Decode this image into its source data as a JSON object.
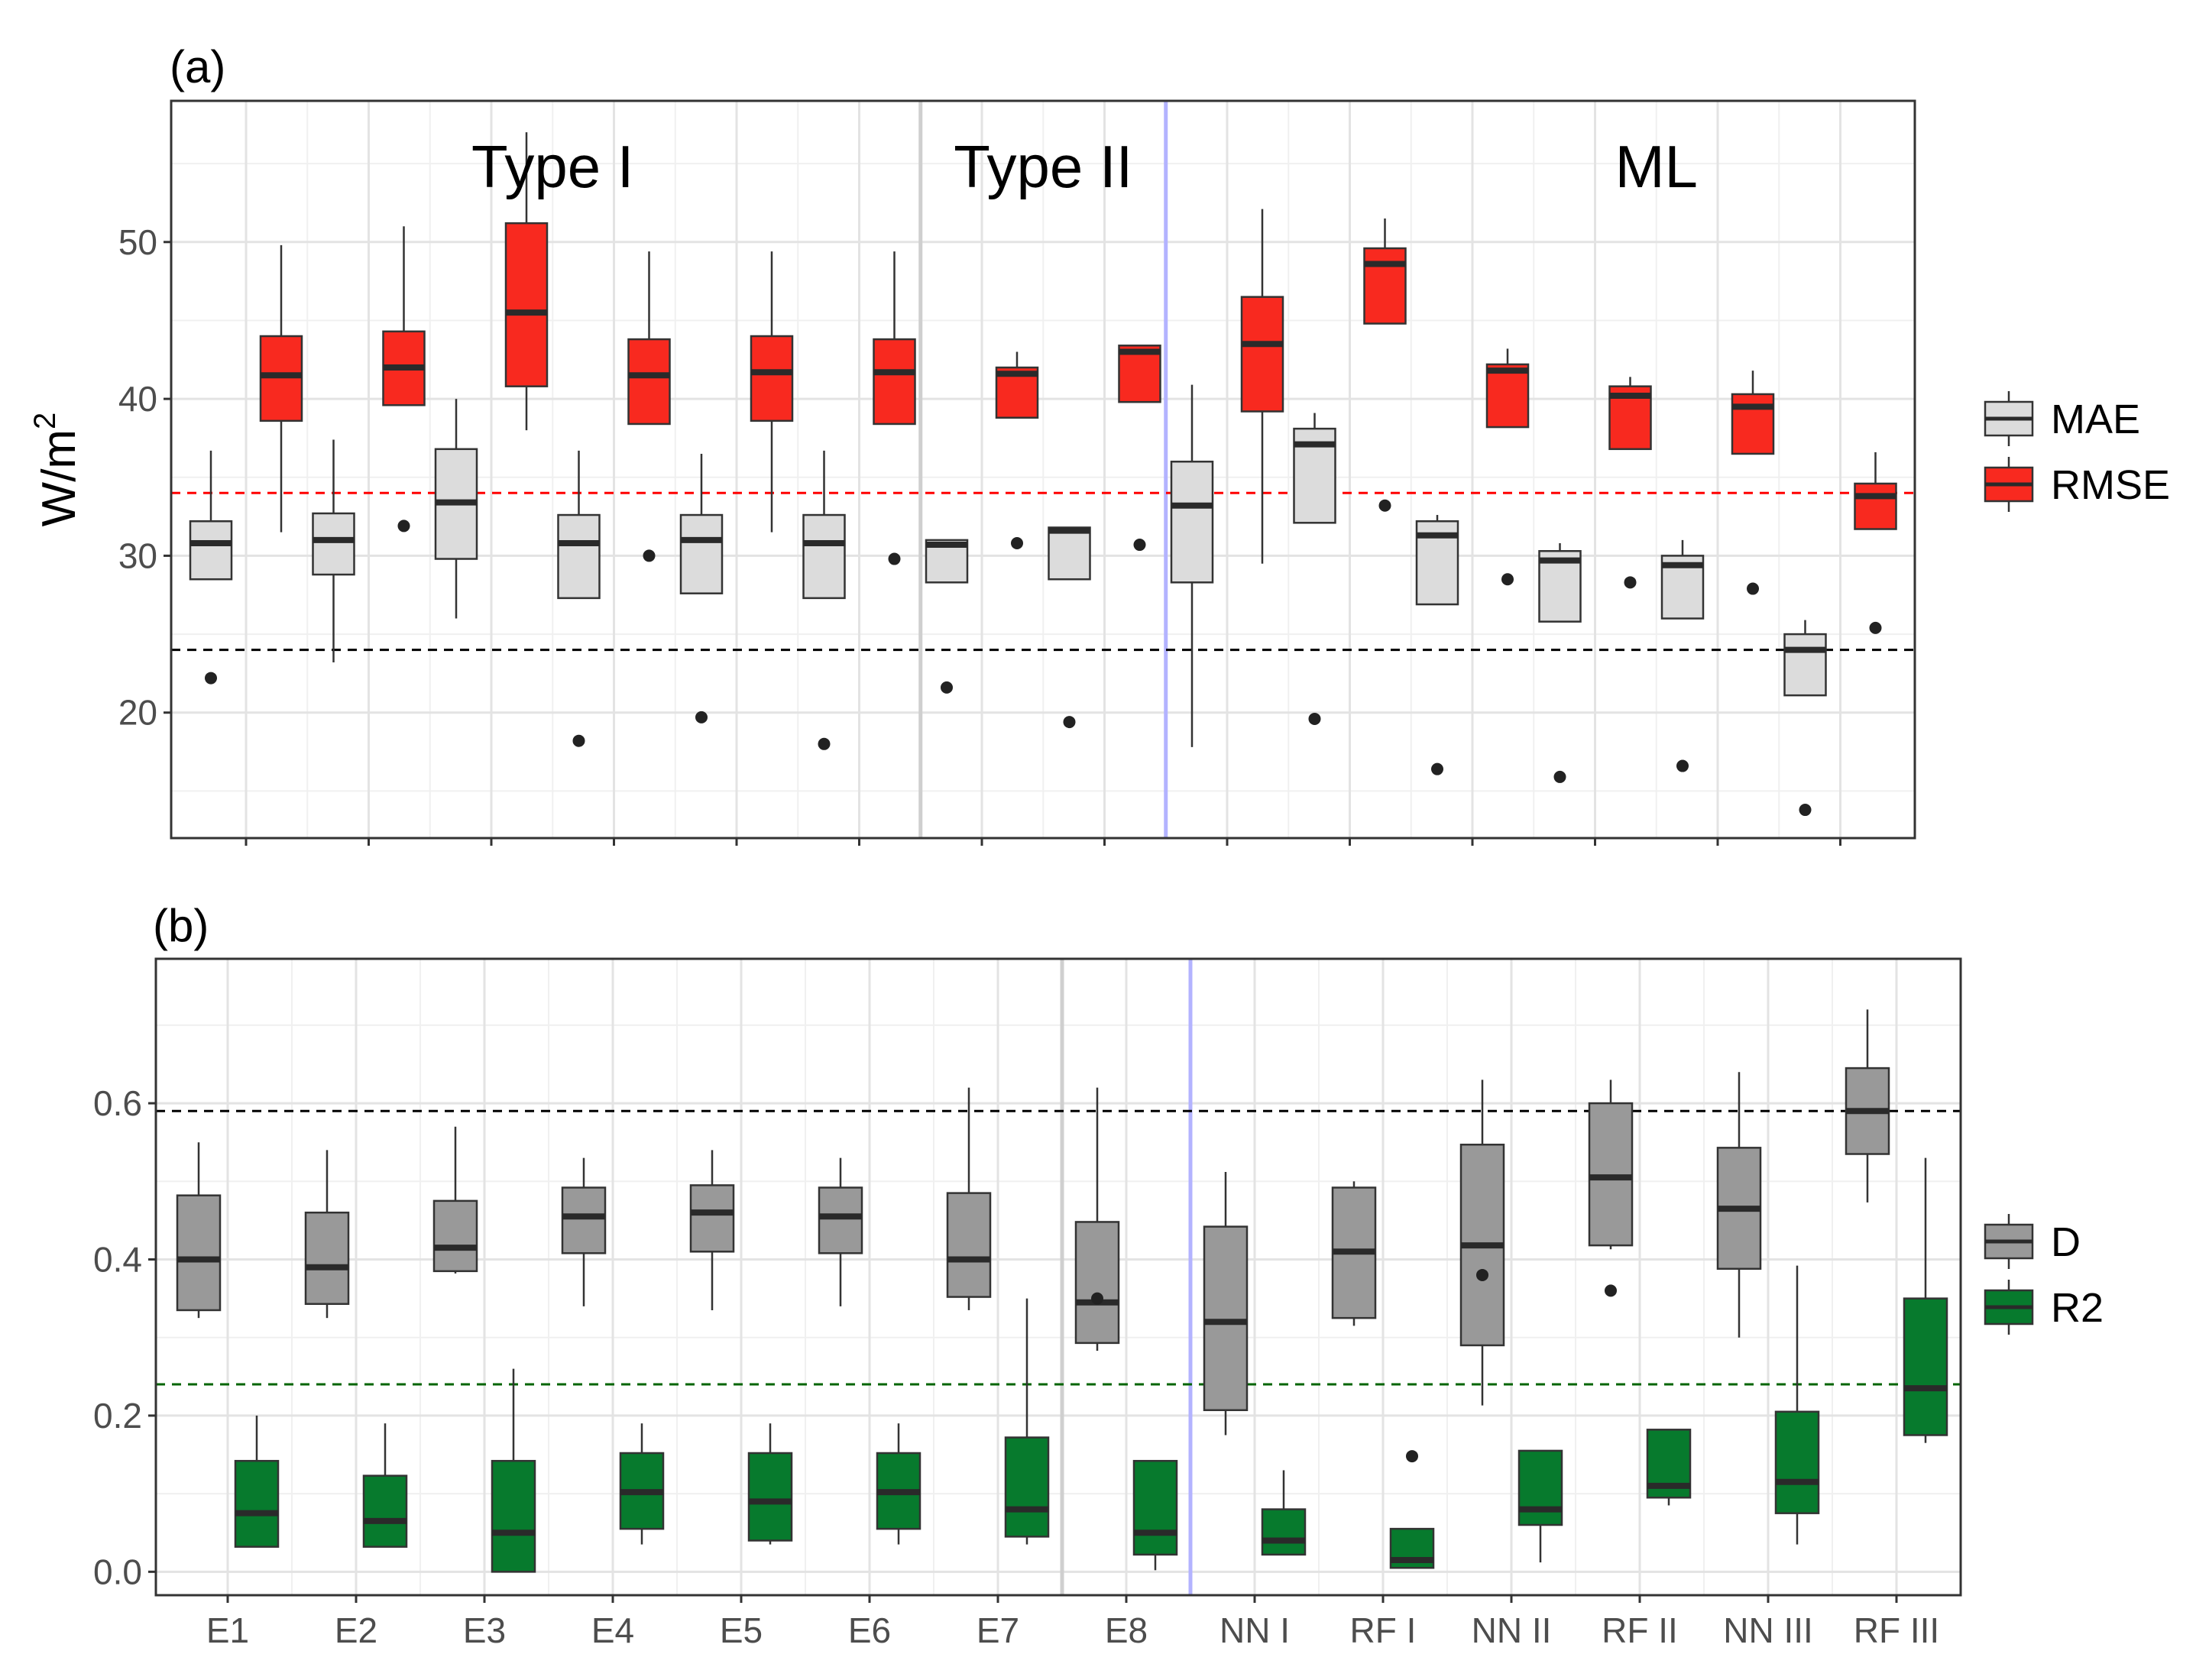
{
  "chart_data": [
    {
      "panel": "(a)",
      "type": "boxplot",
      "ylabel": "W/m",
      "ylabel_sup": "2",
      "ylim": [
        12,
        59
      ],
      "yticks": [
        20,
        30,
        40,
        50
      ],
      "group_labels": [
        {
          "label": "Type I",
          "center": 2.5
        },
        {
          "label": "Type II",
          "center": 6.5
        },
        {
          "label": "ML",
          "center": 11.5
        }
      ],
      "separators": [
        {
          "after": 5.5,
          "color": "#cfcfcf"
        },
        {
          "after": 7.5,
          "color": "#b3b3ff"
        }
      ],
      "reference_lines": [
        {
          "value": 34,
          "color": "#ff0000"
        },
        {
          "value": 24,
          "color": "#000000"
        }
      ],
      "categories": [
        "E1",
        "E2",
        "E3",
        "E4",
        "E5",
        "E6",
        "E7",
        "E8",
        "NN I",
        "RF I",
        "NN II",
        "RF II",
        "NN III",
        "RF III"
      ],
      "series": [
        {
          "name": "MAE",
          "color": "#dcdcdc",
          "boxes": [
            {
              "lw": 28.5,
              "q1": 28.5,
              "med": 30.8,
              "q3": 32.2,
              "uw": 36.7,
              "out": [
                22.2
              ]
            },
            {
              "lw": 23.2,
              "q1": 28.8,
              "med": 31.0,
              "q3": 32.7,
              "uw": 37.4,
              "out": []
            },
            {
              "lw": 26.0,
              "q1": 29.8,
              "med": 33.4,
              "q3": 36.8,
              "uw": 40.0,
              "out": []
            },
            {
              "lw": 27.3,
              "q1": 27.3,
              "med": 30.8,
              "q3": 32.6,
              "uw": 36.7,
              "out": [
                18.2
              ]
            },
            {
              "lw": 27.6,
              "q1": 27.6,
              "med": 31.0,
              "q3": 32.6,
              "uw": 36.5,
              "out": [
                19.7
              ]
            },
            {
              "lw": 27.3,
              "q1": 27.3,
              "med": 30.8,
              "q3": 32.6,
              "uw": 36.7,
              "out": [
                18.0
              ]
            },
            {
              "lw": 28.3,
              "q1": 28.3,
              "med": 30.7,
              "q3": 31.0,
              "uw": 31.0,
              "out": [
                21.6
              ]
            },
            {
              "lw": 28.5,
              "q1": 28.5,
              "med": 31.6,
              "q3": 31.8,
              "uw": 31.8,
              "out": [
                19.4
              ]
            },
            {
              "lw": 17.8,
              "q1": 28.3,
              "med": 33.2,
              "q3": 36.0,
              "uw": 40.9,
              "out": []
            },
            {
              "lw": 32.1,
              "q1": 32.1,
              "med": 37.1,
              "q3": 38.1,
              "uw": 39.1,
              "out": [
                19.6
              ]
            },
            {
              "lw": 26.9,
              "q1": 26.9,
              "med": 31.3,
              "q3": 32.2,
              "uw": 32.6,
              "out": [
                16.4
              ]
            },
            {
              "lw": 25.8,
              "q1": 25.8,
              "med": 29.7,
              "q3": 30.3,
              "uw": 30.8,
              "out": [
                15.9
              ]
            },
            {
              "lw": 26.0,
              "q1": 26.0,
              "med": 29.4,
              "q3": 30.0,
              "uw": 31.0,
              "out": [
                16.6
              ]
            },
            {
              "lw": 21.1,
              "q1": 21.1,
              "med": 24.0,
              "q3": 25.0,
              "uw": 25.9,
              "out": [
                13.8
              ]
            }
          ]
        },
        {
          "name": "RMSE",
          "color": "#f8291f",
          "boxes": [
            {
              "lw": 31.5,
              "q1": 38.6,
              "med": 41.5,
              "q3": 44.0,
              "uw": 49.8,
              "out": []
            },
            {
              "lw": 39.6,
              "q1": 39.6,
              "med": 42.0,
              "q3": 44.3,
              "uw": 51.0,
              "out": [
                31.9
              ]
            },
            {
              "lw": 38.0,
              "q1": 40.8,
              "med": 45.5,
              "q3": 51.2,
              "uw": 57.0,
              "out": []
            },
            {
              "lw": 38.4,
              "q1": 38.4,
              "med": 41.5,
              "q3": 43.8,
              "uw": 49.4,
              "out": [
                30.0
              ]
            },
            {
              "lw": 31.5,
              "q1": 38.6,
              "med": 41.7,
              "q3": 44.0,
              "uw": 49.4,
              "out": []
            },
            {
              "lw": 38.4,
              "q1": 38.4,
              "med": 41.7,
              "q3": 43.8,
              "uw": 49.4,
              "out": [
                29.8
              ]
            },
            {
              "lw": 38.8,
              "q1": 38.8,
              "med": 41.6,
              "q3": 42.0,
              "uw": 43.0,
              "out": [
                30.8
              ]
            },
            {
              "lw": 39.8,
              "q1": 39.8,
              "med": 43.0,
              "q3": 43.4,
              "uw": 43.4,
              "out": [
                30.7
              ]
            },
            {
              "lw": 29.5,
              "q1": 39.2,
              "med": 43.5,
              "q3": 46.5,
              "uw": 52.1,
              "out": []
            },
            {
              "lw": 44.8,
              "q1": 44.8,
              "med": 48.6,
              "q3": 49.6,
              "uw": 51.5,
              "out": [
                33.2
              ]
            },
            {
              "lw": 38.2,
              "q1": 38.2,
              "med": 41.8,
              "q3": 42.2,
              "uw": 43.2,
              "out": [
                28.5
              ]
            },
            {
              "lw": 36.8,
              "q1": 36.8,
              "med": 40.2,
              "q3": 40.8,
              "uw": 41.4,
              "out": [
                28.3
              ]
            },
            {
              "lw": 36.5,
              "q1": 36.5,
              "med": 39.5,
              "q3": 40.3,
              "uw": 41.8,
              "out": [
                27.9
              ]
            },
            {
              "lw": 31.7,
              "q1": 31.7,
              "med": 33.8,
              "q3": 34.6,
              "uw": 36.6,
              "out": [
                25.4
              ]
            }
          ]
        }
      ]
    },
    {
      "panel": "(b)",
      "type": "boxplot",
      "ylim": [
        -0.03,
        0.785
      ],
      "yticks": [
        0.0,
        0.2,
        0.4,
        0.6
      ],
      "ytick_labels": [
        "0.0",
        "0.2",
        "0.4",
        "0.6"
      ],
      "separators": [
        {
          "after": 6.5,
          "color": "#cfcfcf"
        },
        {
          "after": 7.5,
          "color": "#b3b3ff"
        }
      ],
      "reference_lines": [
        {
          "value": 0.59,
          "color": "#000000"
        },
        {
          "value": 0.24,
          "color": "#006400"
        }
      ],
      "categories": [
        "E1",
        "E2",
        "E3",
        "E4",
        "E5",
        "E6",
        "E7",
        "E8",
        "NN I",
        "RF I",
        "NN II",
        "RF II",
        "NN III",
        "RF III"
      ],
      "series": [
        {
          "name": "D",
          "color": "#999999",
          "boxes": [
            {
              "lw": 0.325,
              "q1": 0.335,
              "med": 0.4,
              "q3": 0.482,
              "uw": 0.55,
              "out": []
            },
            {
              "lw": 0.325,
              "q1": 0.343,
              "med": 0.39,
              "q3": 0.46,
              "uw": 0.54,
              "out": []
            },
            {
              "lw": 0.382,
              "q1": 0.385,
              "med": 0.415,
              "q3": 0.475,
              "uw": 0.57,
              "out": []
            },
            {
              "lw": 0.34,
              "q1": 0.408,
              "med": 0.455,
              "q3": 0.492,
              "uw": 0.53,
              "out": []
            },
            {
              "lw": 0.335,
              "q1": 0.41,
              "med": 0.46,
              "q3": 0.495,
              "uw": 0.54,
              "out": []
            },
            {
              "lw": 0.34,
              "q1": 0.408,
              "med": 0.455,
              "q3": 0.492,
              "uw": 0.53,
              "out": []
            },
            {
              "lw": 0.335,
              "q1": 0.352,
              "med": 0.4,
              "q3": 0.485,
              "uw": 0.62,
              "out": []
            },
            {
              "lw": 0.283,
              "q1": 0.293,
              "med": 0.345,
              "q3": 0.448,
              "uw": 0.62,
              "out": [
                0.35
              ]
            },
            {
              "lw": 0.175,
              "q1": 0.207,
              "med": 0.32,
              "q3": 0.442,
              "uw": 0.512,
              "out": []
            },
            {
              "lw": 0.315,
              "q1": 0.325,
              "med": 0.41,
              "q3": 0.492,
              "uw": 0.5,
              "out": []
            },
            {
              "lw": 0.213,
              "q1": 0.29,
              "med": 0.418,
              "q3": 0.547,
              "uw": 0.63,
              "out": [
                0.38
              ]
            },
            {
              "lw": 0.413,
              "q1": 0.418,
              "med": 0.505,
              "q3": 0.6,
              "uw": 0.63,
              "out": [
                0.36
              ]
            },
            {
              "lw": 0.3,
              "q1": 0.388,
              "med": 0.465,
              "q3": 0.543,
              "uw": 0.64,
              "out": []
            },
            {
              "lw": 0.473,
              "q1": 0.535,
              "med": 0.59,
              "q3": 0.645,
              "uw": 0.72,
              "out": []
            }
          ]
        },
        {
          "name": "R2",
          "color": "#077a2d",
          "boxes": [
            {
              "lw": 0.032,
              "q1": 0.032,
              "med": 0.075,
              "q3": 0.142,
              "uw": 0.2,
              "out": []
            },
            {
              "lw": 0.032,
              "q1": 0.032,
              "med": 0.065,
              "q3": 0.123,
              "uw": 0.19,
              "out": []
            },
            {
              "lw": 0.0,
              "q1": 0.0,
              "med": 0.05,
              "q3": 0.142,
              "uw": 0.26,
              "out": []
            },
            {
              "lw": 0.035,
              "q1": 0.055,
              "med": 0.102,
              "q3": 0.152,
              "uw": 0.19,
              "out": []
            },
            {
              "lw": 0.035,
              "q1": 0.04,
              "med": 0.09,
              "q3": 0.152,
              "uw": 0.19,
              "out": []
            },
            {
              "lw": 0.035,
              "q1": 0.055,
              "med": 0.102,
              "q3": 0.152,
              "uw": 0.19,
              "out": []
            },
            {
              "lw": 0.035,
              "q1": 0.045,
              "med": 0.08,
              "q3": 0.172,
              "uw": 0.35,
              "out": []
            },
            {
              "lw": 0.002,
              "q1": 0.022,
              "med": 0.05,
              "q3": 0.142,
              "uw": 0.142,
              "out": []
            },
            {
              "lw": 0.022,
              "q1": 0.022,
              "med": 0.04,
              "q3": 0.08,
              "uw": 0.13,
              "out": []
            },
            {
              "lw": 0.005,
              "q1": 0.005,
              "med": 0.015,
              "q3": 0.055,
              "uw": 0.055,
              "out": [
                0.148
              ]
            },
            {
              "lw": 0.012,
              "q1": 0.06,
              "med": 0.08,
              "q3": 0.155,
              "uw": 0.155,
              "out": []
            },
            {
              "lw": 0.085,
              "q1": 0.095,
              "med": 0.11,
              "q3": 0.182,
              "uw": 0.182,
              "out": []
            },
            {
              "lw": 0.035,
              "q1": 0.075,
              "med": 0.115,
              "q3": 0.205,
              "uw": 0.392,
              "out": []
            },
            {
              "lw": 0.165,
              "q1": 0.175,
              "med": 0.235,
              "q3": 0.35,
              "uw": 0.53,
              "out": []
            }
          ]
        }
      ]
    }
  ]
}
